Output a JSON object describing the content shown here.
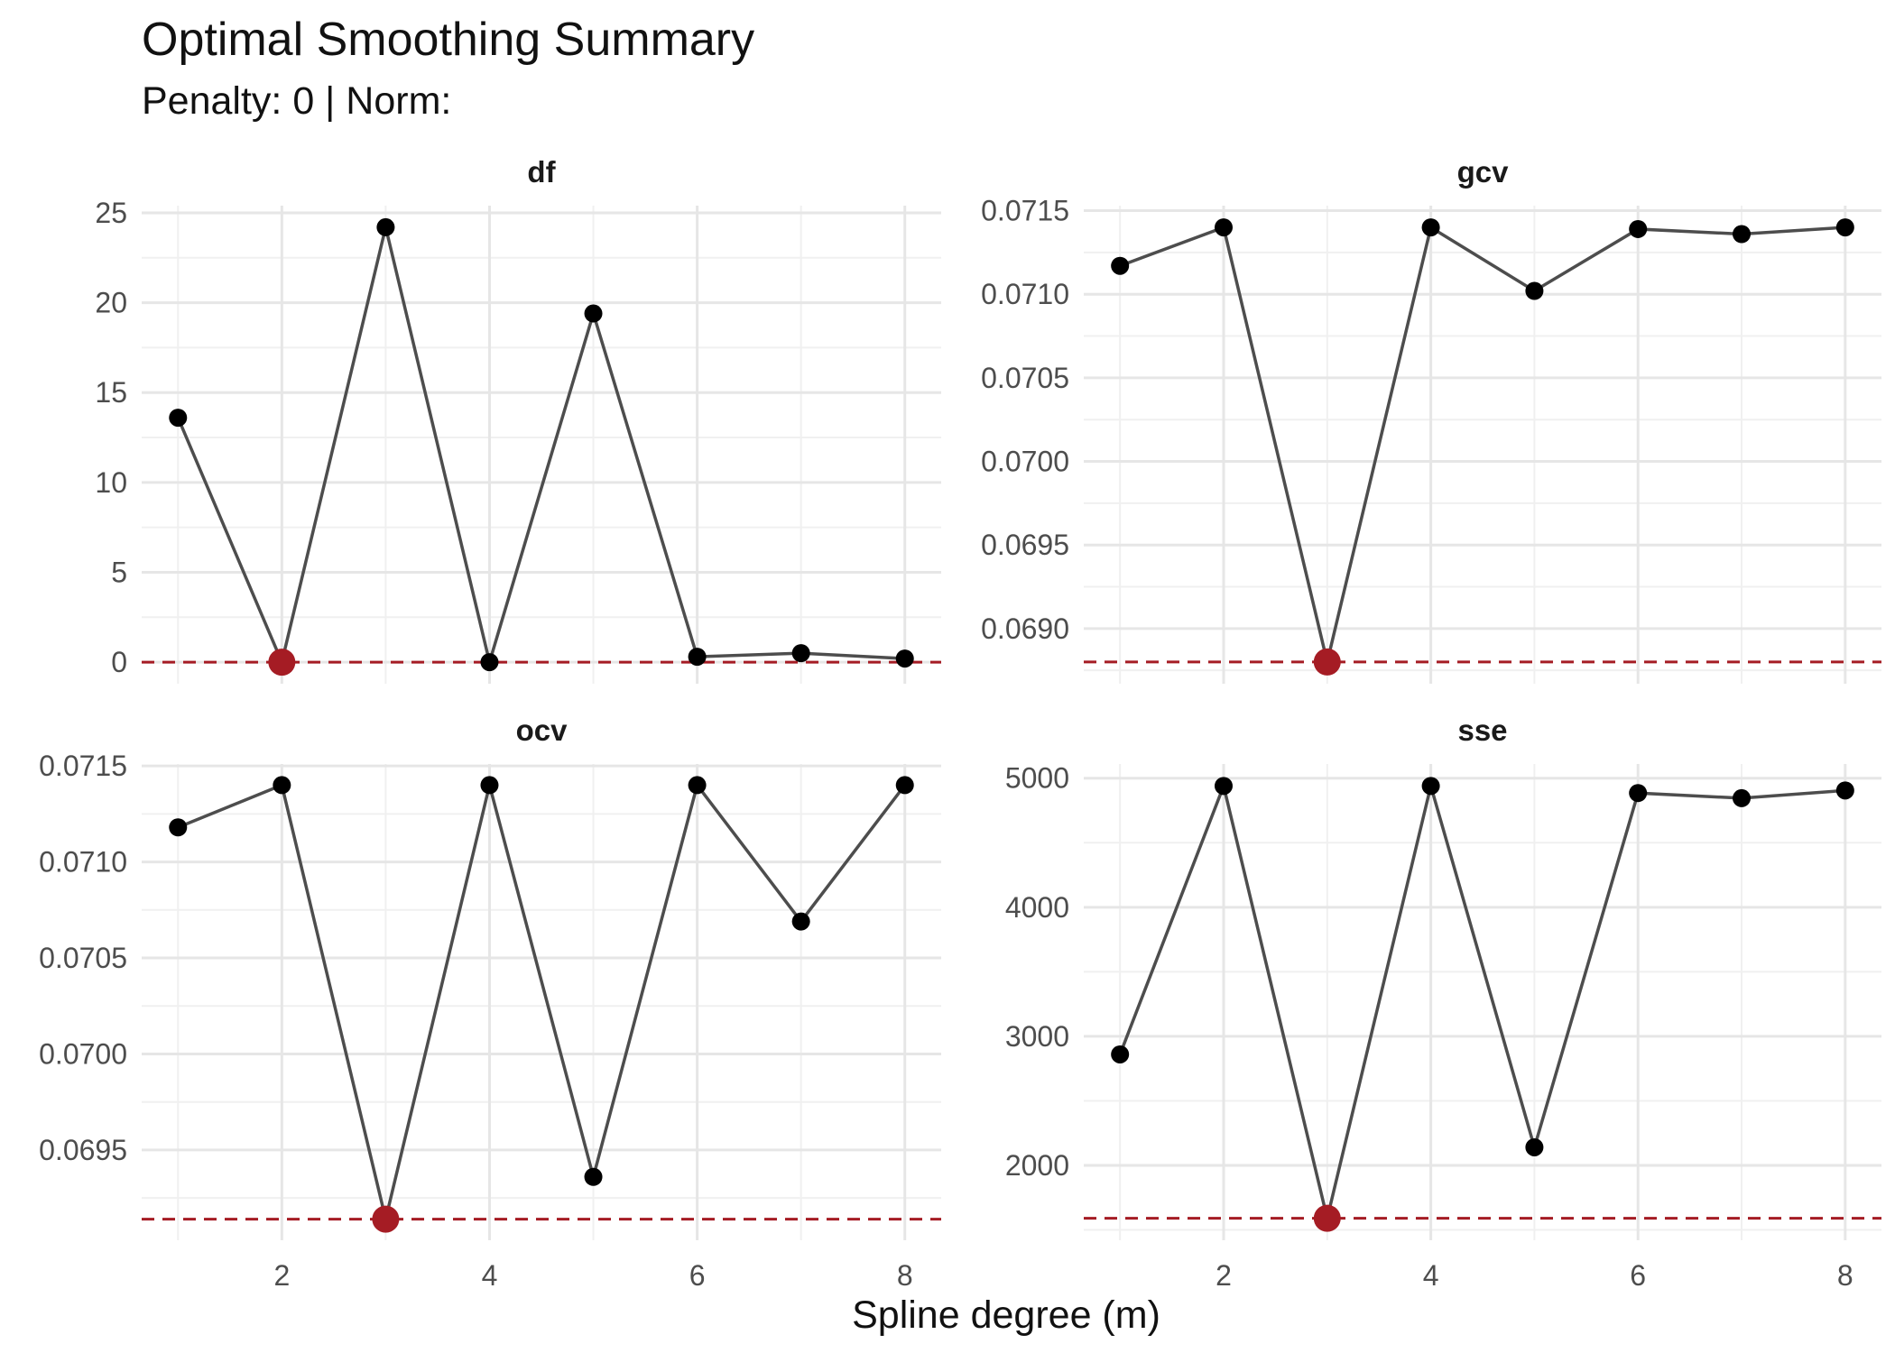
{
  "title": "Optimal Smoothing Summary",
  "subtitle": "Penalty: 0 | Norm:",
  "xlabel": "Spline degree (m)",
  "colors": {
    "line": "#4d4d4d",
    "point": "#000000",
    "highlight": "#a51c24",
    "grid_major": "#e6e6e6",
    "grid_minor": "#f0f0f0"
  },
  "chart_data": [
    {
      "type": "line",
      "title": "df",
      "x": [
        1,
        2,
        3,
        4,
        5,
        6,
        7,
        8
      ],
      "values": [
        13.6,
        0.0,
        24.2,
        0.0,
        19.4,
        0.3,
        0.5,
        0.2
      ],
      "optimal_x": 2,
      "optimal_value": 0.0,
      "yticks": [
        "0",
        "5",
        "10",
        "15",
        "20",
        "25"
      ],
      "ytick_values": [
        0,
        5,
        10,
        15,
        20,
        25
      ],
      "xticks": [
        "2",
        "4",
        "6",
        "8"
      ],
      "xtick_values": [
        2,
        4,
        6,
        8
      ],
      "xlim": [
        0.65,
        8.35
      ],
      "ylim": [
        -1.2,
        25.4
      ],
      "xlabel": "Spline degree (m)",
      "ylabel": ""
    },
    {
      "type": "line",
      "title": "gcv",
      "x": [
        1,
        2,
        3,
        4,
        5,
        6,
        7,
        8
      ],
      "values": [
        0.07117,
        0.0714,
        0.0688,
        0.0714,
        0.07102,
        0.07139,
        0.07136,
        0.0714
      ],
      "optimal_x": 3,
      "optimal_value": 0.0688,
      "yticks": [
        "0.0690",
        "0.0695",
        "0.0700",
        "0.0705",
        "0.0710",
        "0.0715"
      ],
      "ytick_values": [
        0.069,
        0.0695,
        0.07,
        0.0705,
        0.071,
        0.0715
      ],
      "xticks": [
        "2",
        "4",
        "6",
        "8"
      ],
      "xtick_values": [
        2,
        4,
        6,
        8
      ],
      "xlim": [
        0.65,
        8.35
      ],
      "ylim": [
        0.06867,
        0.07153
      ],
      "xlabel": "Spline degree (m)",
      "ylabel": ""
    },
    {
      "type": "line",
      "title": "ocv",
      "x": [
        1,
        2,
        3,
        4,
        5,
        6,
        7,
        8
      ],
      "values": [
        0.07118,
        0.0714,
        0.06914,
        0.0714,
        0.06936,
        0.0714,
        0.07069,
        0.0714
      ],
      "optimal_x": 3,
      "optimal_value": 0.06914,
      "yticks": [
        "0.0695",
        "0.0700",
        "0.0705",
        "0.0710",
        "0.0715"
      ],
      "ytick_values": [
        0.0695,
        0.07,
        0.0705,
        0.071,
        0.0715
      ],
      "xticks": [
        "2",
        "4",
        "6",
        "8"
      ],
      "xtick_values": [
        2,
        4,
        6,
        8
      ],
      "xlim": [
        0.65,
        8.35
      ],
      "ylim": [
        0.06903,
        0.07151
      ],
      "xlabel": "Spline degree (m)",
      "ylabel": ""
    },
    {
      "type": "line",
      "title": "sse",
      "x": [
        1,
        2,
        3,
        4,
        5,
        6,
        7,
        8
      ],
      "values": [
        2860,
        4940,
        1590,
        4940,
        2140,
        4885,
        4845,
        4905
      ],
      "optimal_x": 3,
      "optimal_value": 1590,
      "yticks": [
        "2000",
        "3000",
        "4000",
        "5000"
      ],
      "ytick_values": [
        2000,
        3000,
        4000,
        5000
      ],
      "xticks": [
        "2",
        "4",
        "6",
        "8"
      ],
      "xtick_values": [
        2,
        4,
        6,
        8
      ],
      "xlim": [
        0.65,
        8.35
      ],
      "ylim": [
        1420,
        5110
      ],
      "xlabel": "Spline degree (m)",
      "ylabel": ""
    }
  ]
}
